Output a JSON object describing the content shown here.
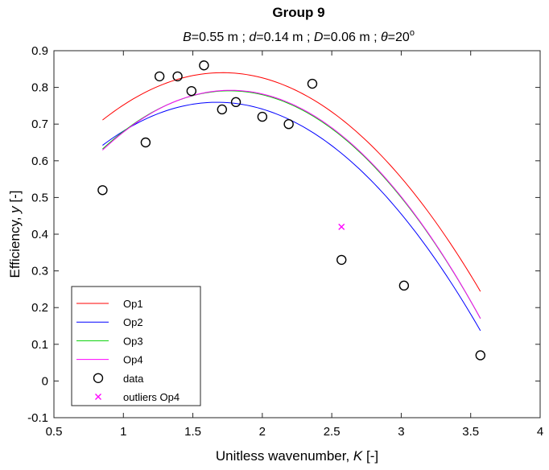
{
  "chart_data": {
    "type": "scatter",
    "title": "Group 9",
    "subtitle": {
      "B_sym": "B",
      "B_val": "=0.55 m ; ",
      "d_sym": "d",
      "d_val": "=0.14 m ; ",
      "D_sym": "D",
      "D_val": "=0.06 m ; ",
      "theta_sym": "θ",
      "theta_val": "=20",
      "theta_sup": "o"
    },
    "xlabel": {
      "text": "Unitless wavenumber, ",
      "sym": "K",
      "unit": " [-]"
    },
    "ylabel": {
      "text": "Efficiency, ",
      "sym": "y",
      "unit": " [-]"
    },
    "xlim": [
      0.5,
      4
    ],
    "ylim": [
      -0.1,
      0.9
    ],
    "xticks": [
      "0.5",
      "1",
      "1.5",
      "2",
      "2.5",
      "3",
      "3.5",
      "4"
    ],
    "yticks": [
      "-0.1",
      "0",
      "0.1",
      "0.2",
      "0.3",
      "0.4",
      "0.5",
      "0.6",
      "0.7",
      "0.8",
      "0.9"
    ],
    "legend_position": "bottom-left",
    "curves": [
      {
        "name": "Op1",
        "color": "#ff0000",
        "a": 0.332,
        "b": 0.593,
        "c": -0.173,
        "x_range": [
          0.85,
          3.57
        ]
      },
      {
        "name": "Op2",
        "color": "#0000ff",
        "a": 0.275,
        "b": 0.579,
        "c": -0.173,
        "x_range": [
          0.85,
          3.57
        ]
      },
      {
        "name": "Op3",
        "color": "#00d000",
        "a": 0.2,
        "b": 0.67,
        "c": -0.19,
        "x_range": [
          0.85,
          3.57
        ]
      },
      {
        "name": "Op4",
        "color": "#ff00ff",
        "a": 0.19,
        "b": 0.68,
        "c": -0.192,
        "x_range": [
          0.85,
          3.57
        ]
      }
    ],
    "data_label": "data",
    "data": {
      "x": [
        0.85,
        1.16,
        1.26,
        1.39,
        1.49,
        1.58,
        1.71,
        1.81,
        2.0,
        2.19,
        2.36,
        2.57,
        3.02,
        3.57
      ],
      "y": [
        0.52,
        0.65,
        0.83,
        0.83,
        0.79,
        0.86,
        0.74,
        0.76,
        0.72,
        0.7,
        0.81,
        0.33,
        0.26,
        0.07
      ]
    },
    "outliers_label": "outliers Op4",
    "outliers_color": "#ff00ff",
    "outliers": {
      "x": [
        2.57
      ],
      "y": [
        0.42
      ]
    }
  }
}
